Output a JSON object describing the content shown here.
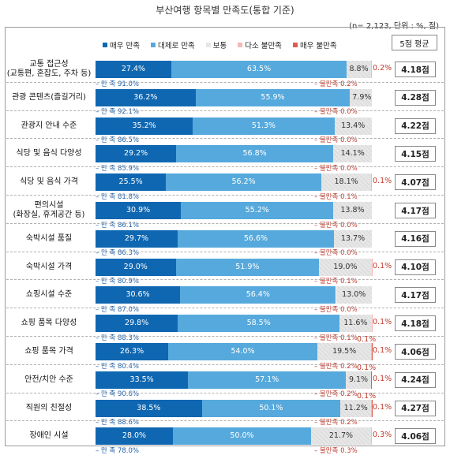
{
  "title": "부산여행 항목별 만족도(통합 기준)",
  "note": "(n= 2,123, 단위 : %, 점)",
  "avg_header": "5점 평균",
  "colors": {
    "very_satisfied": "#0f67b1",
    "satisfied": "#56a9dc",
    "neutral": "#e6e6e6",
    "dissatisfied": "#f4b9b4",
    "very_dissatisfied": "#e05a4e",
    "sat_text": "#1f5fa8",
    "dissat_text": "#c0392b"
  },
  "chart_data": {
    "type": "bar",
    "orientation": "horizontal",
    "stacked": true,
    "categories": [
      "교통 접근성\n(교통편, 혼잡도, 주차 등)",
      "관광 콘텐츠(즐길거리)",
      "관광지 안내 수준",
      "식당 및 음식 다양성",
      "식당 및 음식 가격",
      "편의시설\n(화장실, 휴게공간 등)",
      "숙박시설 품질",
      "숙박시설 가격",
      "쇼핑시설 수준",
      "쇼핑 품목 다양성",
      "쇼핑 품목 가격",
      "안전/치안 수준",
      "직원의 친절성",
      "장애인 시설"
    ],
    "series": [
      {
        "name": "매우 만족",
        "values": [
          27.4,
          36.2,
          35.2,
          29.2,
          25.5,
          30.9,
          29.7,
          29.0,
          30.6,
          29.8,
          26.3,
          33.5,
          38.5,
          28.0
        ]
      },
      {
        "name": "대체로 만족",
        "values": [
          63.5,
          55.9,
          51.3,
          56.8,
          56.2,
          55.2,
          56.6,
          51.9,
          56.4,
          58.5,
          54.0,
          57.1,
          50.1,
          50.0
        ]
      },
      {
        "name": "보통",
        "values": [
          8.8,
          7.9,
          13.4,
          14.1,
          18.1,
          13.8,
          13.7,
          19.0,
          13.0,
          11.6,
          19.5,
          9.1,
          11.2,
          21.7
        ]
      },
      {
        "name": "다소 불만족",
        "values": [
          0.2,
          0.0,
          0.0,
          0.0,
          0.1,
          0.0,
          0.0,
          0.1,
          0.0,
          0.1,
          0.1,
          0.1,
          0.1,
          0.3
        ]
      },
      {
        "name": "매우 불만족",
        "values": [
          0.0,
          0.0,
          0.0,
          0.0,
          0.0,
          0.0,
          0.0,
          0.0,
          0.0,
          0.0,
          0.1,
          0.1,
          0.1,
          0.0
        ]
      }
    ],
    "satisfied_total": [
      "91.0",
      "92.1",
      "86.5",
      "85.9",
      "81.8",
      "86.1",
      "86.3",
      "80.9",
      "87.0",
      "88.3",
      "80.4",
      "90.6",
      "88.6",
      "78.0"
    ],
    "dissatisfied_total": [
      "0.2",
      "0.0",
      "0.0",
      "0.0",
      "0.1",
      "0.0",
      "0.0",
      "0.1",
      "0.0",
      "0.1",
      "0.2",
      "0.2",
      "0.2",
      "0.3"
    ],
    "outside_labels": [
      [
        "0.2%"
      ],
      [],
      [],
      [],
      [
        "0.1%"
      ],
      [],
      [],
      [
        "0.1%"
      ],
      [],
      [
        "0.1%"
      ],
      [
        "0.1%",
        "0.1%"
      ],
      [
        "0.1%",
        "0.1%"
      ],
      [
        "0.1%",
        "0.1%"
      ],
      [
        "0.3%"
      ]
    ],
    "averages": [
      "4.18점",
      "4.28점",
      "4.22점",
      "4.15점",
      "4.07점",
      "4.17점",
      "4.16점",
      "4.10점",
      "4.17점",
      "4.18점",
      "4.06점",
      "4.24점",
      "4.27점",
      "4.06점"
    ],
    "sat_prefix": "만 족",
    "dissat_prefix": "불만족",
    "xlim": [
      0,
      100
    ],
    "legend_position": "top"
  }
}
